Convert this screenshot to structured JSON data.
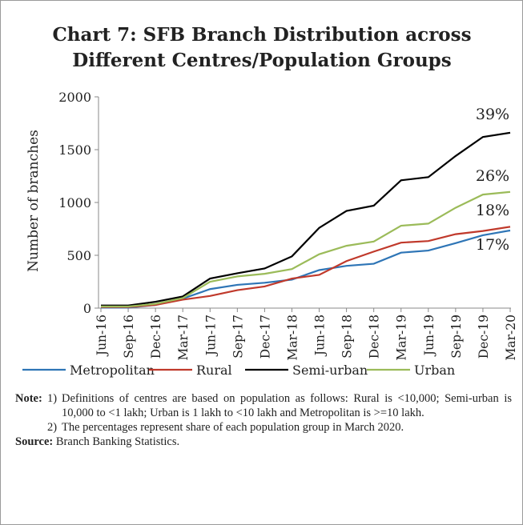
{
  "chart_data": {
    "type": "line",
    "title": "Chart 7: SFB Branch Distribution across Different Centres/Population Groups",
    "y_label": "Number of branches",
    "categories": [
      "Jun-16",
      "Sep-16",
      "Dec-16",
      "Mar-17",
      "Jun-17",
      "Sep-17",
      "Dec-17",
      "Mar-18",
      "Jun-18",
      "Sep-18",
      "Dec-18",
      "Mar-19",
      "Jun-19",
      "Sep-19",
      "Dec-19",
      "Mar-20"
    ],
    "series": [
      {
        "name": "Metropolitan",
        "color": "#2e75b6",
        "values": [
          5,
          5,
          30,
          90,
          180,
          220,
          240,
          270,
          360,
          400,
          420,
          525,
          545,
          615,
          690,
          735
        ]
      },
      {
        "name": "Rural",
        "color": "#c0392b",
        "values": [
          10,
          10,
          30,
          80,
          115,
          170,
          205,
          280,
          315,
          445,
          535,
          620,
          635,
          700,
          730,
          770
        ]
      },
      {
        "name": "Semi-urban",
        "color": "#000000",
        "values": [
          25,
          25,
          60,
          110,
          280,
          330,
          375,
          490,
          760,
          920,
          970,
          1210,
          1240,
          1440,
          1620,
          1660
        ]
      },
      {
        "name": "Urban",
        "color": "#9bbb59",
        "values": [
          15,
          15,
          40,
          95,
          250,
          300,
          325,
          370,
          510,
          590,
          630,
          780,
          800,
          950,
          1075,
          1100
        ]
      }
    ],
    "annotations": [
      "39%",
      "26%",
      "18%",
      "17%"
    ],
    "ylim": [
      0,
      2000
    ],
    "yticks": [
      0,
      500,
      1000,
      1500,
      2000
    ],
    "grid": false
  },
  "notes": {
    "label": "Note:",
    "items": [
      {
        "num": "1)",
        "text": "Definitions of centres are based on population as follows: Rural is <10,000; Semi-urban is 10,000 to <1 lakh; Urban is 1 lakh to <10 lakh and Metropolitan is >=10 lakh."
      },
      {
        "num": "2)",
        "text": "The percentages represent share of each population group in March 2020."
      }
    ]
  },
  "source": {
    "label": "Source:",
    "text": "Branch Banking Statistics."
  }
}
